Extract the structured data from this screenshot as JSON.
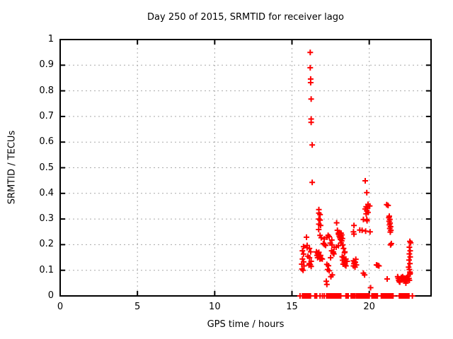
{
  "chart_data": {
    "type": "scatter",
    "title": "Day 250 of 2015, SRMTID for receiver lago",
    "xlabel": "GPS time / hours",
    "ylabel": "SRMTID / TECUs",
    "xlim": [
      0,
      24
    ],
    "ylim": [
      0,
      1
    ],
    "xticks": [
      0,
      5,
      10,
      15,
      20
    ],
    "xtick_labels": [
      "0",
      "5",
      "10",
      "15",
      "20"
    ],
    "yticks": [
      0,
      0.1,
      0.2,
      0.3,
      0.4,
      0.5,
      0.6,
      0.7,
      0.8,
      0.9,
      1
    ],
    "ytick_labels": [
      "0",
      "0.1",
      "0.2",
      "0.3",
      "0.4",
      "0.5",
      "0.6",
      "0.7",
      "0.8",
      "0.9",
      "1"
    ],
    "grid": true,
    "legend_position": "none",
    "marker": "plus",
    "colors": {
      "marker": "#ff0000",
      "grid": "#a8a8a8",
      "border": "#000000",
      "background": "#ffffff",
      "text": "#000000"
    },
    "series": [
      {
        "name": "SRMTID",
        "points": [
          [
            16.18,
            0.95
          ],
          [
            16.18,
            0.89
          ],
          [
            16.21,
            0.846
          ],
          [
            16.21,
            0.832
          ],
          [
            16.24,
            0.768
          ],
          [
            16.24,
            0.69
          ],
          [
            16.24,
            0.677
          ],
          [
            16.31,
            0.589
          ],
          [
            16.31,
            0.443
          ],
          [
            19.74,
            0.449
          ],
          [
            19.84,
            0.403
          ],
          [
            19.92,
            0.357
          ],
          [
            20.03,
            0.351
          ],
          [
            19.8,
            0.348
          ],
          [
            19.89,
            0.342
          ],
          [
            19.74,
            0.339
          ],
          [
            19.84,
            0.332
          ],
          [
            19.92,
            0.326
          ],
          [
            19.8,
            0.32
          ],
          [
            19.62,
            0.298
          ],
          [
            19.84,
            0.298
          ],
          [
            19.86,
            0.293
          ],
          [
            21.13,
            0.356
          ],
          [
            21.22,
            0.353
          ],
          [
            21.3,
            0.311
          ],
          [
            21.27,
            0.305
          ],
          [
            21.33,
            0.298
          ],
          [
            21.29,
            0.291
          ],
          [
            21.35,
            0.284
          ],
          [
            21.31,
            0.277
          ],
          [
            21.38,
            0.27
          ],
          [
            21.33,
            0.263
          ],
          [
            21.4,
            0.256
          ],
          [
            21.36,
            0.249
          ],
          [
            21.43,
            0.204
          ],
          [
            21.38,
            0.199
          ],
          [
            16.74,
            0.337
          ],
          [
            16.74,
            0.323
          ],
          [
            16.82,
            0.317
          ],
          [
            16.74,
            0.3
          ],
          [
            16.82,
            0.296
          ],
          [
            16.74,
            0.28
          ],
          [
            16.85,
            0.275
          ],
          [
            16.73,
            0.259
          ],
          [
            16.82,
            0.236
          ],
          [
            16.89,
            0.227
          ],
          [
            17.89,
            0.285
          ],
          [
            17.94,
            0.256
          ],
          [
            18.01,
            0.245
          ],
          [
            18.02,
            0.24
          ],
          [
            18.06,
            0.233
          ],
          [
            18.1,
            0.243
          ],
          [
            18.1,
            0.227
          ],
          [
            18.14,
            0.236
          ],
          [
            18.14,
            0.22
          ],
          [
            18.18,
            0.245
          ],
          [
            18.18,
            0.23
          ],
          [
            18.22,
            0.238
          ],
          [
            18.22,
            0.215
          ],
          [
            18.26,
            0.224
          ],
          [
            18.18,
            0.207
          ],
          [
            18.28,
            0.199
          ],
          [
            18.01,
            0.196
          ],
          [
            17.86,
            0.19
          ],
          [
            19.01,
            0.275
          ],
          [
            18.98,
            0.25
          ],
          [
            19.01,
            0.241
          ],
          [
            19.39,
            0.257
          ],
          [
            19.54,
            0.256
          ],
          [
            19.77,
            0.253
          ],
          [
            20.05,
            0.25
          ],
          [
            15.94,
            0.229
          ],
          [
            15.98,
            0.197
          ],
          [
            17.27,
            0.229
          ],
          [
            17.09,
            0.222
          ],
          [
            17.34,
            0.236
          ],
          [
            17.41,
            0.231
          ],
          [
            17.58,
            0.218
          ],
          [
            17.03,
            0.204
          ],
          [
            17.48,
            0.206
          ],
          [
            17.59,
            0.199
          ],
          [
            17.1,
            0.2
          ],
          [
            17.18,
            0.197
          ],
          [
            15.75,
            0.192
          ],
          [
            15.68,
            0.176
          ],
          [
            15.75,
            0.163
          ],
          [
            15.68,
            0.144
          ],
          [
            15.75,
            0.133
          ],
          [
            15.63,
            0.124
          ],
          [
            15.78,
            0.117
          ],
          [
            15.65,
            0.105
          ],
          [
            15.72,
            0.1
          ],
          [
            15.98,
            0.188
          ],
          [
            16.13,
            0.185
          ],
          [
            16.21,
            0.172
          ],
          [
            16.03,
            0.155
          ],
          [
            16.13,
            0.149
          ],
          [
            16.24,
            0.135
          ],
          [
            16.13,
            0.126
          ],
          [
            16.18,
            0.122
          ],
          [
            16.24,
            0.115
          ],
          [
            16.1,
            0.12
          ],
          [
            16.58,
            0.172
          ],
          [
            16.74,
            0.17
          ],
          [
            16.66,
            0.167
          ],
          [
            16.7,
            0.162
          ],
          [
            16.62,
            0.158
          ],
          [
            16.85,
            0.158
          ],
          [
            16.74,
            0.155
          ],
          [
            16.78,
            0.152
          ],
          [
            16.66,
            0.149
          ],
          [
            16.9,
            0.146
          ],
          [
            16.96,
            0.144
          ],
          [
            16.81,
            0.144
          ],
          [
            17.73,
            0.19
          ],
          [
            17.57,
            0.176
          ],
          [
            17.67,
            0.172
          ],
          [
            17.66,
            0.167
          ],
          [
            17.71,
            0.164
          ],
          [
            17.5,
            0.149
          ],
          [
            17.26,
            0.123
          ],
          [
            17.36,
            0.118
          ],
          [
            17.31,
            0.103
          ],
          [
            17.41,
            0.098
          ],
          [
            17.61,
            0.082
          ],
          [
            17.52,
            0.075
          ],
          [
            17.22,
            0.057
          ],
          [
            17.26,
            0.045
          ],
          [
            18.34,
            0.185
          ],
          [
            18.42,
            0.172
          ],
          [
            18.4,
            0.169
          ],
          [
            18.25,
            0.153
          ],
          [
            18.34,
            0.149
          ],
          [
            18.28,
            0.139
          ],
          [
            18.38,
            0.131
          ],
          [
            18.31,
            0.124
          ],
          [
            18.43,
            0.121
          ],
          [
            18.49,
            0.117
          ],
          [
            18.49,
            0.144
          ],
          [
            18.57,
            0.135
          ],
          [
            19.13,
            0.143
          ],
          [
            18.98,
            0.137
          ],
          [
            19.05,
            0.133
          ],
          [
            19.1,
            0.131
          ],
          [
            19.01,
            0.126
          ],
          [
            19.17,
            0.121
          ],
          [
            18.98,
            0.117
          ],
          [
            19.08,
            0.112
          ],
          [
            19.62,
            0.089
          ],
          [
            19.7,
            0.082
          ],
          [
            20.47,
            0.121
          ],
          [
            20.55,
            0.119
          ],
          [
            20.63,
            0.117
          ],
          [
            20.09,
            0.032
          ],
          [
            21.16,
            0.066
          ],
          [
            21.84,
            0.075
          ],
          [
            21.88,
            0.068
          ],
          [
            21.91,
            0.061
          ],
          [
            21.95,
            0.056
          ],
          [
            21.98,
            0.054
          ],
          [
            22.37,
            0.05
          ],
          [
            22.07,
            0.072
          ],
          [
            22.12,
            0.068
          ],
          [
            22.16,
            0.075
          ],
          [
            22.21,
            0.064
          ],
          [
            22.25,
            0.07
          ],
          [
            22.3,
            0.061
          ],
          [
            22.34,
            0.068
          ],
          [
            22.39,
            0.057
          ],
          [
            22.43,
            0.072
          ],
          [
            22.48,
            0.064
          ],
          [
            22.52,
            0.078
          ],
          [
            22.57,
            0.068
          ],
          [
            22.6,
            0.061
          ],
          [
            22.63,
            0.085
          ],
          [
            22.65,
            0.089
          ],
          [
            22.63,
            0.213
          ],
          [
            22.68,
            0.207
          ],
          [
            22.6,
            0.19
          ],
          [
            22.65,
            0.176
          ],
          [
            22.6,
            0.164
          ],
          [
            22.65,
            0.152
          ],
          [
            22.58,
            0.14
          ],
          [
            22.63,
            0.126
          ],
          [
            22.55,
            0.112
          ],
          [
            22.6,
            0.103
          ],
          [
            22.63,
            0.093
          ],
          [
            15.52,
            0
          ],
          [
            15.68,
            0
          ],
          [
            15.72,
            0
          ],
          [
            15.76,
            0
          ],
          [
            15.8,
            0
          ],
          [
            15.84,
            0
          ],
          [
            15.88,
            0
          ],
          [
            15.92,
            0
          ],
          [
            15.96,
            0
          ],
          [
            16.0,
            0
          ],
          [
            16.04,
            0
          ],
          [
            16.08,
            0
          ],
          [
            16.12,
            0
          ],
          [
            16.16,
            0
          ],
          [
            16.2,
            0
          ],
          [
            16.48,
            0
          ],
          [
            16.52,
            0
          ],
          [
            16.56,
            0
          ],
          [
            16.6,
            0
          ],
          [
            16.82,
            0
          ],
          [
            16.97,
            0
          ],
          [
            17.09,
            0
          ],
          [
            17.24,
            0
          ],
          [
            17.28,
            0
          ],
          [
            17.32,
            0
          ],
          [
            17.36,
            0
          ],
          [
            17.4,
            0
          ],
          [
            17.44,
            0
          ],
          [
            17.48,
            0
          ],
          [
            17.52,
            0
          ],
          [
            17.56,
            0
          ],
          [
            17.6,
            0
          ],
          [
            17.64,
            0
          ],
          [
            17.68,
            0
          ],
          [
            17.72,
            0
          ],
          [
            17.76,
            0
          ],
          [
            17.8,
            0
          ],
          [
            17.84,
            0
          ],
          [
            17.88,
            0
          ],
          [
            17.92,
            0
          ],
          [
            17.96,
            0
          ],
          [
            18.04,
            0
          ],
          [
            18.08,
            0
          ],
          [
            18.12,
            0
          ],
          [
            18.16,
            0
          ],
          [
            18.49,
            0
          ],
          [
            18.57,
            0
          ],
          [
            18.64,
            0
          ],
          [
            18.83,
            0
          ],
          [
            18.87,
            0
          ],
          [
            18.91,
            0
          ],
          [
            18.95,
            0
          ],
          [
            19.0,
            0
          ],
          [
            19.04,
            0
          ],
          [
            19.08,
            0
          ],
          [
            19.18,
            0
          ],
          [
            19.26,
            0
          ],
          [
            19.33,
            0
          ],
          [
            19.41,
            0
          ],
          [
            19.45,
            0
          ],
          [
            19.49,
            0
          ],
          [
            19.53,
            0
          ],
          [
            19.57,
            0
          ],
          [
            19.61,
            0
          ],
          [
            19.65,
            0
          ],
          [
            19.7,
            0
          ],
          [
            19.74,
            0
          ],
          [
            19.78,
            0
          ],
          [
            19.82,
            0
          ],
          [
            19.86,
            0
          ],
          [
            19.95,
            0
          ],
          [
            20.0,
            0
          ],
          [
            20.17,
            0
          ],
          [
            20.21,
            0
          ],
          [
            20.25,
            0
          ],
          [
            20.29,
            0
          ],
          [
            20.33,
            0
          ],
          [
            20.37,
            0
          ],
          [
            20.41,
            0
          ],
          [
            20.45,
            0
          ],
          [
            20.49,
            0
          ],
          [
            20.53,
            0
          ],
          [
            20.78,
            0
          ],
          [
            20.82,
            0
          ],
          [
            20.86,
            0
          ],
          [
            20.9,
            0
          ],
          [
            20.94,
            0
          ],
          [
            20.98,
            0
          ],
          [
            21.02,
            0
          ],
          [
            21.06,
            0
          ],
          [
            21.1,
            0
          ],
          [
            21.14,
            0
          ],
          [
            21.18,
            0
          ],
          [
            21.23,
            0
          ],
          [
            21.27,
            0
          ],
          [
            21.31,
            0
          ],
          [
            21.38,
            0
          ],
          [
            21.46,
            0
          ],
          [
            21.54,
            0
          ],
          [
            21.95,
            0
          ],
          [
            21.99,
            0
          ],
          [
            22.03,
            0
          ],
          [
            22.07,
            0
          ],
          [
            22.11,
            0
          ],
          [
            22.15,
            0
          ],
          [
            22.19,
            0
          ],
          [
            22.23,
            0
          ],
          [
            22.27,
            0
          ],
          [
            22.31,
            0
          ],
          [
            22.35,
            0
          ],
          [
            22.39,
            0
          ],
          [
            22.43,
            0
          ],
          [
            22.48,
            0
          ],
          [
            22.57,
            0
          ],
          [
            22.79,
            0
          ]
        ]
      }
    ]
  }
}
